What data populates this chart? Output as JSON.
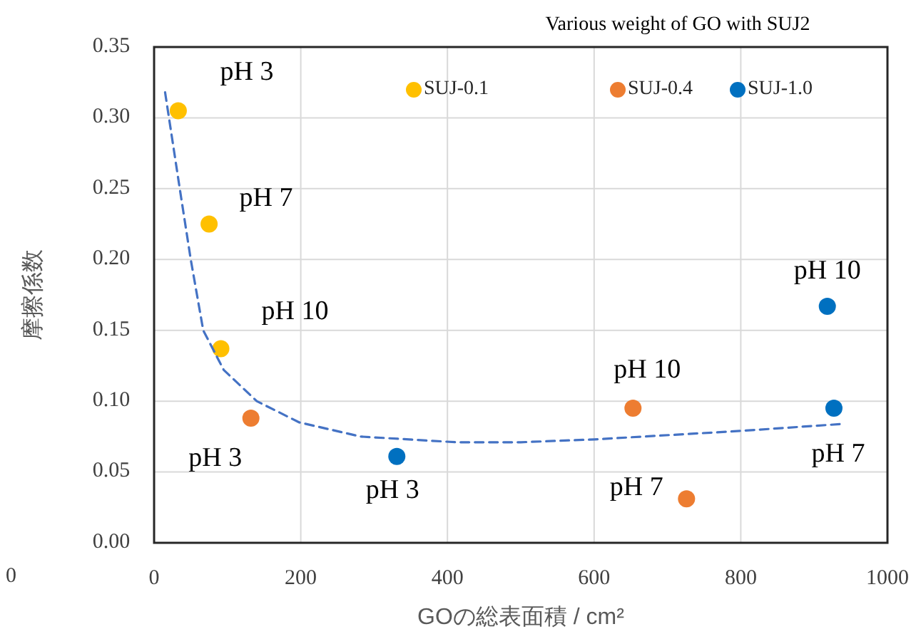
{
  "chart_data": {
    "type": "scatter",
    "title": "Various weight of GO with SUJ2",
    "xlabel": "GOの総表面積 / cm²",
    "ylabel": "摩擦係数",
    "xlim": [
      0,
      1000
    ],
    "xticks": [
      0,
      200,
      400,
      600,
      800,
      1000
    ],
    "ylim": [
      0,
      0.35
    ],
    "yticks": [
      {
        "value": 0,
        "label": "0.00"
      },
      {
        "value": 0.05,
        "label": "0.05"
      },
      {
        "value": 0.1,
        "label": "0.10"
      },
      {
        "value": 0.15,
        "label": "0.15"
      },
      {
        "value": 0.2,
        "label": "0.20"
      },
      {
        "value": 0.25,
        "label": "0.25"
      },
      {
        "value": 0.3,
        "label": "0.30"
      },
      {
        "value": 0.35,
        "label": "0.35"
      }
    ],
    "grid": true,
    "legend": "top",
    "marker": "circle",
    "series": [
      {
        "name": "SUJ-0.1",
        "color": "#ffc000",
        "x": [
          33,
          75,
          91
        ],
        "values": [
          0.305,
          0.225,
          0.137
        ]
      },
      {
        "name": "SUJ-0.4",
        "color": "#ed7d31",
        "x": [
          132,
          653,
          726
        ],
        "values": [
          0.088,
          0.095,
          0.031
        ]
      },
      {
        "name": "SUJ-1.0",
        "color": "#0070c0",
        "x": [
          331,
          918,
          927
        ],
        "values": [
          0.061,
          0.167,
          0.095
        ]
      },
      {
        "type": "line",
        "marker": "none",
        "line_style": "dashed",
        "color": "#4472c4",
        "x": [
          15,
          35,
          50,
          67,
          95,
          140,
          198,
          282,
          412,
          500,
          600,
          800,
          941
        ],
        "values": [
          0.318,
          0.25,
          0.2,
          0.15,
          0.122,
          0.1,
          0.085,
          0.075,
          0.071,
          0.071,
          0.073,
          0.079,
          0.084
        ]
      }
    ],
    "annotations": [
      {
        "text": "pH 3",
        "x": 33,
        "y": 0.305
      },
      {
        "text": "pH 7",
        "x": 75,
        "y": 0.225
      },
      {
        "text": "pH 10",
        "x": 91,
        "y": 0.137
      },
      {
        "text": "pH 3",
        "x": 132,
        "y": 0.088
      },
      {
        "text": "pH 10",
        "x": 653,
        "y": 0.095
      },
      {
        "text": "pH 7",
        "x": 726,
        "y": 0.031
      },
      {
        "text": "pH 3",
        "x": 331,
        "y": 0.061
      },
      {
        "text": "pH 10",
        "x": 918,
        "y": 0.167
      },
      {
        "text": "pH 7",
        "x": 927,
        "y": 0.095
      },
      "0"
    ]
  }
}
